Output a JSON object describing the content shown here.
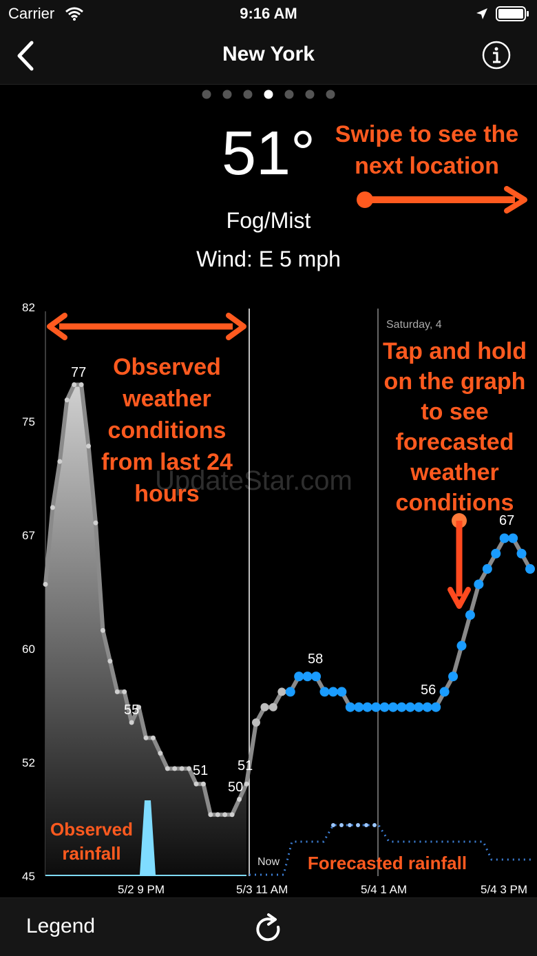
{
  "status_bar": {
    "carrier": "Carrier",
    "time": "9:16 AM"
  },
  "nav": {
    "title": "New York"
  },
  "pager": {
    "count": 7,
    "active_index": 3
  },
  "current": {
    "temperature": "51°",
    "condition": "Fog/Mist",
    "wind": "Wind: E 5 mph"
  },
  "annotations": {
    "swipe": "Swipe to see the next location",
    "observed": "Observed weather conditions from last 24 hours",
    "tap": "Tap and hold on the graph to see forecasted weather conditions",
    "observed_rainfall": "Observed rainfall",
    "forecasted_rainfall": "Forecasted rainfall"
  },
  "watermark": "UpdateStar.com",
  "chart_data": {
    "type": "line",
    "y_ticks": [
      "82",
      "75",
      "67",
      "60",
      "52",
      "45"
    ],
    "ylim": [
      45,
      82
    ],
    "x_ticks": [
      "5/2 9 PM",
      "5/3 11 AM",
      "5/4 1 AM",
      "5/4 3 PM"
    ],
    "now_label": "Now",
    "day_label": "Saturday, 4",
    "data_labels": [
      "77",
      "55",
      "51",
      "50",
      "51",
      "58",
      "56",
      "67"
    ],
    "series": [
      {
        "values": [
          64,
          69,
          72,
          76,
          77,
          77,
          73,
          68,
          61,
          59,
          57,
          57,
          55,
          56,
          54,
          54,
          53,
          52,
          52,
          52,
          52,
          51,
          51,
          49,
          49,
          49,
          49,
          50,
          51
        ]
      },
      {
        "values": [
          55,
          56,
          56,
          57,
          57,
          58,
          58,
          58,
          57,
          57,
          57,
          56,
          56,
          56,
          56,
          56,
          56,
          56,
          56,
          56,
          56,
          56,
          57,
          58,
          60,
          62,
          64,
          65,
          66,
          67,
          67,
          66,
          65
        ]
      }
    ],
    "colors": {
      "observed": "#9a9a9a",
      "forecast": "#1a9cff",
      "rain_observed": "#7fdcff",
      "rain_forecast": "#3d7fd6",
      "annotation": "#ff5a1f"
    }
  },
  "bottom_bar": {
    "legend": "Legend"
  }
}
